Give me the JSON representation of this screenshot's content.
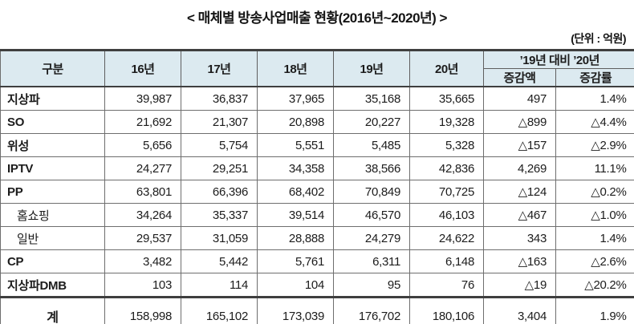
{
  "title": "<  매체별  방송사업매출  현황(2016년~2020년)  >",
  "unit_label": "(단위 : 억원)",
  "colors": {
    "header_bg": "#dceaf0",
    "border_thick": "#3f3f3f",
    "border_thin": "#6e6e6e",
    "text": "#1c1c1c"
  },
  "table": {
    "header": {
      "gubun": "구분",
      "years": [
        "16년",
        "17년",
        "18년",
        "19년",
        "20년"
      ],
      "compare_group": "’19년 대비 ’20년",
      "compare_amount": "증감액",
      "compare_rate": "증감률"
    },
    "rows": [
      {
        "label": "지상파",
        "values": [
          "39,987",
          "36,837",
          "37,965",
          "35,168",
          "35,665",
          "497",
          "1.4%"
        ]
      },
      {
        "label": "SO",
        "values": [
          "21,692",
          "21,307",
          "20,898",
          "20,227",
          "19,328",
          "△899",
          "△4.4%"
        ]
      },
      {
        "label": "위성",
        "values": [
          "5,656",
          "5,754",
          "5,551",
          "5,485",
          "5,328",
          "△157",
          "△2.9%"
        ]
      },
      {
        "label": "IPTV",
        "values": [
          "24,277",
          "29,251",
          "34,358",
          "38,566",
          "42,836",
          "4,269",
          "11.1%"
        ]
      },
      {
        "label": "PP",
        "values": [
          "63,801",
          "66,396",
          "68,402",
          "70,849",
          "70,725",
          "△124",
          "△0.2%"
        ]
      },
      {
        "label": "홈쇼핑",
        "values": [
          "34,264",
          "35,337",
          "39,514",
          "46,570",
          "46,103",
          "△467",
          "△1.0%"
        ]
      },
      {
        "label": "일반",
        "values": [
          "29,537",
          "31,059",
          "28,888",
          "24,279",
          "24,622",
          "343",
          "1.4%"
        ]
      },
      {
        "label": "CP",
        "values": [
          "3,482",
          "5,442",
          "5,761",
          "6,311",
          "6,148",
          "△163",
          "△2.6%"
        ]
      },
      {
        "label": "지상파DMB",
        "values": [
          "103",
          "114",
          "104",
          "95",
          "76",
          "△19",
          "△20.2%"
        ]
      }
    ],
    "total": {
      "label": "계",
      "values": [
        "158,998",
        "165,102",
        "173,039",
        "176,702",
        "180,106",
        "3,404",
        "1.9%"
      ]
    }
  }
}
